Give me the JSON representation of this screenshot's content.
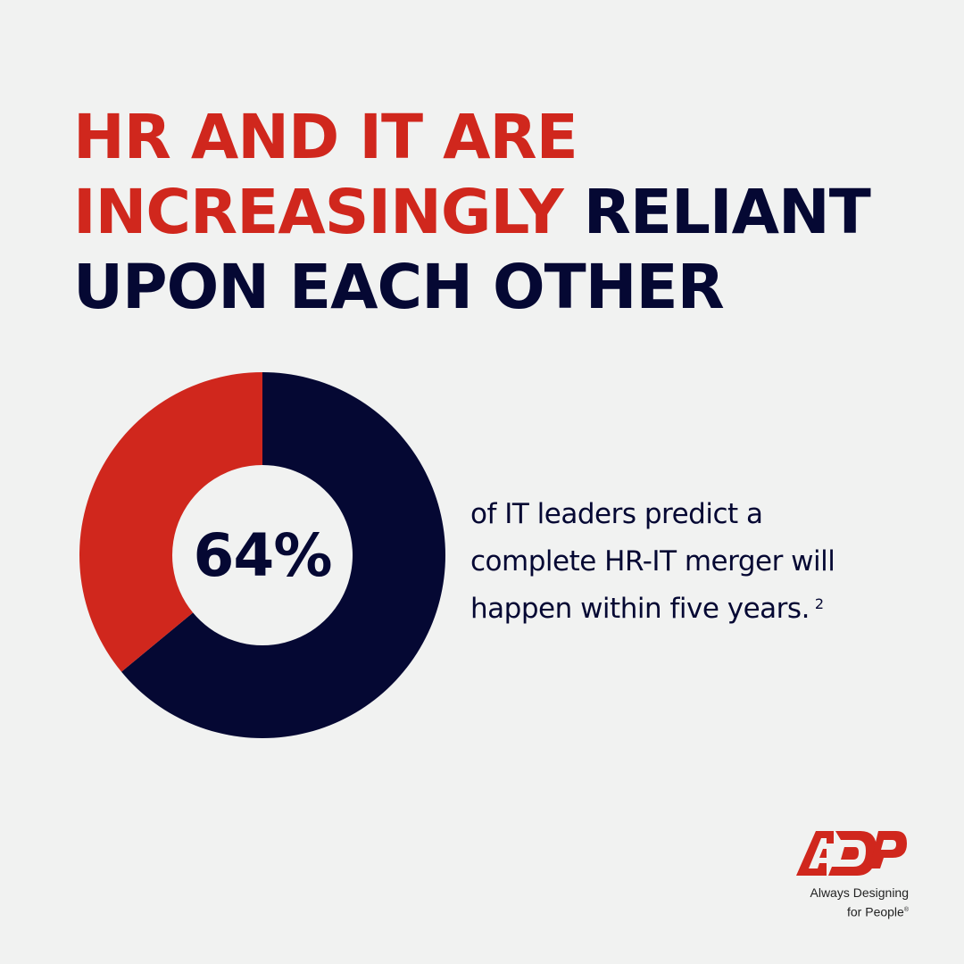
{
  "headline": {
    "line1_red": "HR AND IT ARE",
    "line2_red": "INCREASINGLY",
    "line2_dark": "RELIANT",
    "line3_dark": "UPON EACH OTHER"
  },
  "colors": {
    "accent_red": "#d0271d",
    "navy": "#050833",
    "background": "#f1f2f1"
  },
  "chart_data": {
    "type": "pie",
    "donut": true,
    "center_label": "64%",
    "slices": [
      {
        "value": 64,
        "color": "#050833"
      },
      {
        "value": 36,
        "color": "#d0271d"
      }
    ]
  },
  "caption": {
    "line1": "of IT leaders predict a",
    "line2": "complete HR-IT merger will",
    "line3": "happen within five years.",
    "footnote": "2"
  },
  "logo": {
    "mark": "ADP",
    "tagline_line1": "Always Designing",
    "tagline_line2": "for People",
    "registered": "®"
  }
}
